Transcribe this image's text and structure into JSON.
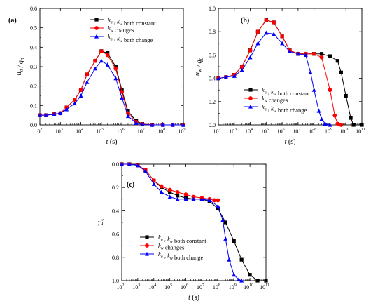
{
  "chart_data": [
    {
      "type": "line",
      "panel_label": "(a)",
      "xlabel": "t (s)",
      "ylabel": "u_a / q_0",
      "xscale": "log",
      "xlim": [
        100,
        1000000000
      ],
      "ylim": [
        0,
        0.6
      ],
      "yticks": [
        "0.0",
        "0.1",
        "0.2",
        "0.3",
        "0.4",
        "0.5",
        "0.6"
      ],
      "xtick_exponents": [
        "2",
        "3",
        "4",
        "5",
        "6",
        "7",
        "8",
        "9"
      ],
      "legend_position": "top-right",
      "series": [
        {
          "name": "k_a , k_w both constant",
          "color": "#000000",
          "marker": "square",
          "x": [
            100,
            200,
            500,
            1000,
            2000,
            5000,
            10000,
            20000,
            50000,
            100000,
            200000,
            500000,
            1000000,
            2000000,
            5000000,
            10000000,
            30000000,
            100000000,
            300000000,
            1000000000
          ],
          "y": [
            0.05,
            0.05,
            0.055,
            0.06,
            0.09,
            0.13,
            0.18,
            0.26,
            0.33,
            0.38,
            0.37,
            0.3,
            0.18,
            0.07,
            0.02,
            0.005,
            0.0,
            0.0,
            0.0,
            0.0
          ]
        },
        {
          "name": "k_w changes",
          "color": "#ff0000",
          "marker": "circle",
          "x": [
            100,
            200,
            500,
            1000,
            2000,
            5000,
            10000,
            20000,
            50000,
            100000,
            200000,
            500000,
            1000000,
            2000000,
            5000000,
            10000000,
            30000000,
            100000000,
            300000000,
            1000000000
          ],
          "y": [
            0.05,
            0.05,
            0.055,
            0.06,
            0.09,
            0.13,
            0.18,
            0.26,
            0.33,
            0.38,
            0.36,
            0.29,
            0.17,
            0.06,
            0.015,
            0.004,
            0.0,
            0.0,
            0.0,
            0.0
          ]
        },
        {
          "name": "k_a , k_w both change",
          "color": "#0000ff",
          "marker": "triangle",
          "x": [
            100,
            200,
            500,
            1000,
            2000,
            5000,
            10000,
            20000,
            50000,
            100000,
            200000,
            500000,
            1000000,
            2000000,
            5000000,
            10000000,
            30000000,
            100000000,
            300000000,
            1000000000
          ],
          "y": [
            0.05,
            0.05,
            0.055,
            0.06,
            0.08,
            0.11,
            0.15,
            0.22,
            0.29,
            0.33,
            0.31,
            0.24,
            0.14,
            0.045,
            0.01,
            0.002,
            0.0,
            0.0,
            0.0,
            0.0
          ]
        }
      ]
    },
    {
      "type": "line",
      "panel_label": "(b)",
      "xlabel": "t (s)",
      "ylabel": "u_w / q_0",
      "xscale": "log",
      "xlim": [
        100,
        100000000000
      ],
      "ylim": [
        0,
        1.0
      ],
      "yticks": [
        "0.0",
        "0.2",
        "0.4",
        "0.6",
        "0.8",
        "1.0"
      ],
      "xtick_exponents": [
        "2",
        "3",
        "4",
        "5",
        "6",
        "7",
        "8",
        "9",
        "10",
        "11"
      ],
      "legend_position": "lower-right",
      "series": [
        {
          "name": "k_a , k_w both constant",
          "color": "#000000",
          "marker": "square",
          "x": [
            100,
            300,
            1000,
            3000,
            10000,
            30000,
            100000,
            300000,
            1000000,
            3000000,
            10000000,
            30000000,
            100000000,
            300000000,
            1000000000,
            3000000000,
            5000000000,
            10000000000,
            20000000000,
            30000000000,
            100000000000
          ],
          "y": [
            0.4,
            0.41,
            0.43,
            0.5,
            0.64,
            0.8,
            0.9,
            0.88,
            0.76,
            0.64,
            0.61,
            0.61,
            0.61,
            0.61,
            0.59,
            0.55,
            0.45,
            0.25,
            0.06,
            0.0,
            0.0
          ]
        },
        {
          "name": "k_w changes",
          "color": "#ff0000",
          "marker": "circle",
          "x": [
            100,
            300,
            1000,
            3000,
            10000,
            30000,
            100000,
            300000,
            1000000,
            3000000,
            10000000,
            30000000,
            100000000,
            300000000,
            1000000000,
            2000000000,
            3000000000,
            5000000000
          ],
          "y": [
            0.4,
            0.41,
            0.43,
            0.5,
            0.64,
            0.8,
            0.9,
            0.88,
            0.76,
            0.64,
            0.61,
            0.61,
            0.61,
            0.58,
            0.3,
            0.08,
            0.01,
            0.0
          ]
        },
        {
          "name": "k_a , k_w both change",
          "color": "#0000ff",
          "marker": "triangle",
          "x": [
            100,
            300,
            1000,
            3000,
            10000,
            30000,
            100000,
            300000,
            1000000,
            3000000,
            10000000,
            30000000,
            60000000,
            100000000,
            200000000,
            300000000,
            500000000,
            1000000000
          ],
          "y": [
            0.4,
            0.41,
            0.42,
            0.47,
            0.58,
            0.7,
            0.79,
            0.78,
            0.7,
            0.63,
            0.61,
            0.6,
            0.45,
            0.3,
            0.12,
            0.05,
            0.01,
            0.0
          ]
        }
      ]
    },
    {
      "type": "line",
      "panel_label": "(c)",
      "xlabel": "t (s)",
      "ylabel": "U_s",
      "xscale": "log",
      "yinverted": true,
      "xlim": [
        100,
        100000000000
      ],
      "ylim": [
        0,
        1.0
      ],
      "yticks": [
        "0.0",
        "0.2",
        "0.4",
        "0.6",
        "0.8",
        "1.0"
      ],
      "xtick_exponents": [
        "2",
        "3",
        "4",
        "5",
        "6",
        "7",
        "8",
        "9",
        "10",
        "11"
      ],
      "legend_position": "lower-right",
      "series": [
        {
          "name": "k_a , k_w both constant",
          "color": "#000000",
          "marker": "square",
          "x": [
            100,
            300,
            1000,
            3000,
            10000,
            30000,
            100000,
            300000,
            1000000,
            3000000,
            10000000,
            30000000,
            100000000,
            300000000,
            1000000000,
            3000000000,
            10000000000,
            30000000000,
            100000000000
          ],
          "y": [
            0.0,
            0.0,
            0.01,
            0.05,
            0.14,
            0.2,
            0.24,
            0.27,
            0.29,
            0.3,
            0.3,
            0.32,
            0.38,
            0.5,
            0.66,
            0.82,
            0.95,
            1.0,
            1.0
          ]
        },
        {
          "name": "k_w changes",
          "color": "#ff0000",
          "marker": "circle",
          "x": [
            100,
            300,
            1000,
            3000,
            10000,
            30000,
            100000,
            300000,
            1000000,
            3000000,
            10000000,
            30000000,
            60000000,
            100000000
          ],
          "y": [
            0.0,
            0.0,
            0.01,
            0.05,
            0.14,
            0.19,
            0.22,
            0.24,
            0.26,
            0.28,
            0.29,
            0.3,
            0.31,
            0.31
          ]
        },
        {
          "name": "k_a , k_w both change",
          "color": "#0000ff",
          "marker": "triangle",
          "x": [
            100,
            300,
            1000,
            3000,
            10000,
            30000,
            100000,
            300000,
            1000000,
            3000000,
            10000000,
            30000000,
            100000000,
            200000000,
            300000000,
            500000000,
            1000000000,
            2000000000,
            3000000000
          ],
          "y": [
            0.0,
            0.0,
            0.01,
            0.06,
            0.17,
            0.24,
            0.28,
            0.3,
            0.3,
            0.3,
            0.3,
            0.31,
            0.36,
            0.48,
            0.64,
            0.82,
            0.95,
            0.99,
            1.0
          ]
        }
      ]
    }
  ]
}
